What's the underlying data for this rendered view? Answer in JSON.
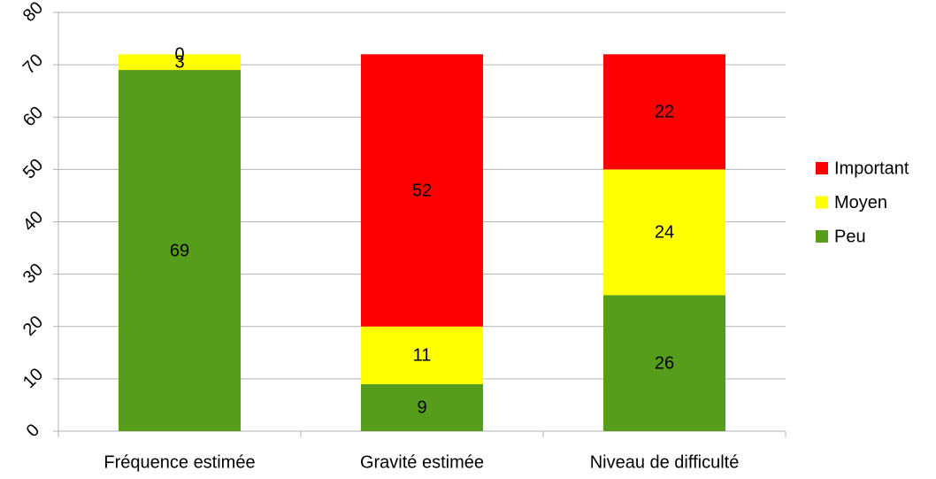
{
  "chart_data": {
    "type": "stacked_bar",
    "categories": [
      "Fréquence estimée",
      "Gravité estimée",
      "Niveau de difficulté"
    ],
    "series": [
      {
        "name": "Peu",
        "color": "#579d1c",
        "values": [
          69,
          9,
          26
        ]
      },
      {
        "name": "Moyen",
        "color": "#ffff00",
        "values": [
          3,
          11,
          24
        ]
      },
      {
        "name": "Important",
        "color": "#ff0000",
        "values": [
          0,
          52,
          22
        ]
      }
    ],
    "ylim": [
      0,
      80
    ],
    "yticks": [
      0,
      10,
      20,
      30,
      40,
      50,
      60,
      70,
      80
    ],
    "grid": true,
    "legend": "right"
  }
}
